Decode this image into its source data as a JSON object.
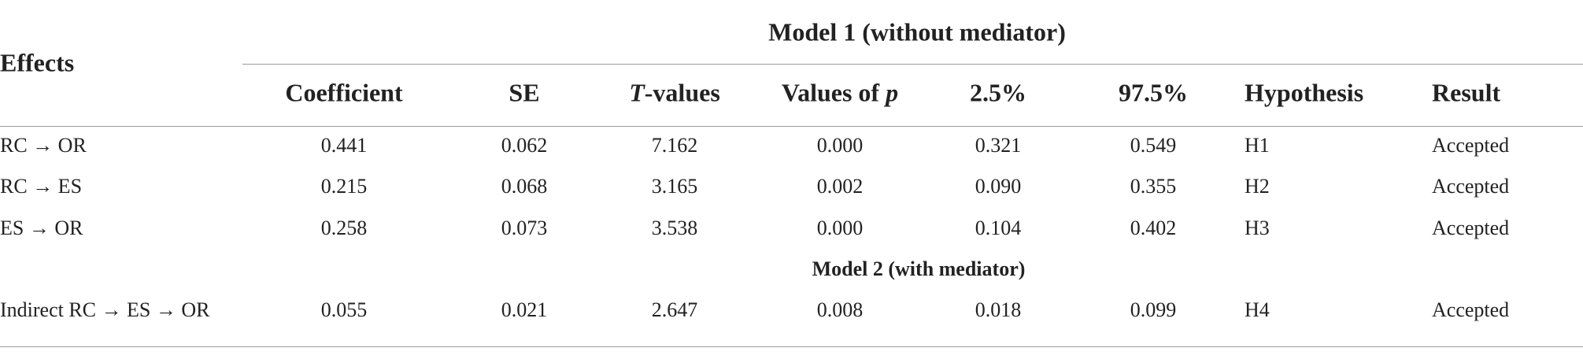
{
  "table": {
    "stub_header": "Effects",
    "group_header": "Model 1 (without mediator)",
    "columns": [
      {
        "text": "Coefficient"
      },
      {
        "text": "SE"
      },
      {
        "italic": "T",
        "text": "-values"
      },
      {
        "text": "Values of ",
        "italic_end": "p"
      },
      {
        "text": "2.5%"
      },
      {
        "text": "97.5%"
      },
      {
        "text": "Hypothesis"
      },
      {
        "text": "Result"
      }
    ],
    "rows": [
      [
        "RC → OR",
        "0.441",
        "0.062",
        "7.162",
        "0.000",
        "0.321",
        "0.549",
        "H1",
        "Accepted"
      ],
      [
        "RC → ES",
        "0.215",
        "0.068",
        "3.165",
        "0.002",
        "0.090",
        "0.355",
        "H2",
        "Accepted"
      ],
      [
        "ES → OR",
        "0.258",
        "0.073",
        "3.538",
        "0.000",
        "0.104",
        "0.402",
        "H3",
        "Accepted"
      ]
    ],
    "section_header": "Model 2 (with mediator)",
    "section_rows": [
      [
        "Indirect RC → ES → OR",
        "0.055",
        "0.021",
        "2.647",
        "0.008",
        "0.018",
        "0.099",
        "H4",
        "Accepted"
      ]
    ]
  }
}
